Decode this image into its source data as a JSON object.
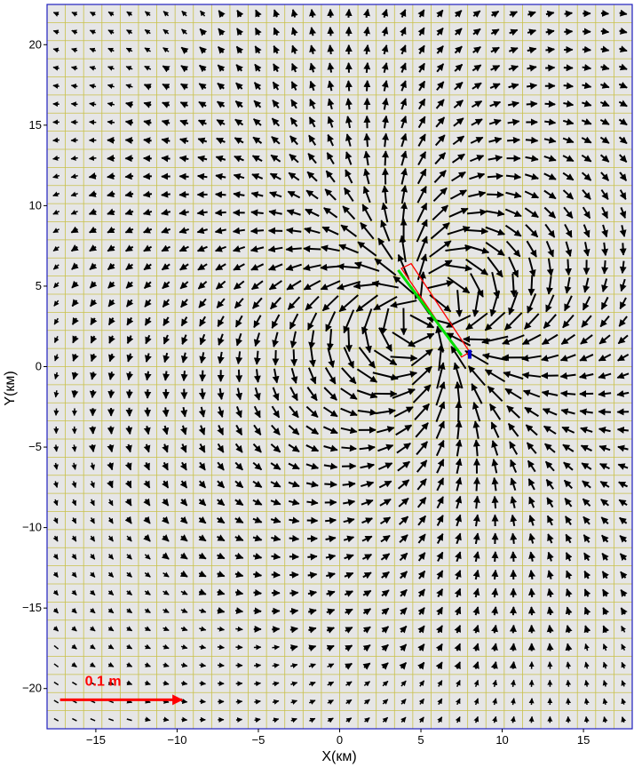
{
  "chart_data": {
    "type": "vector-field",
    "xlabel": "X(км)",
    "ylabel": "Y(км)",
    "xlim": [
      -18,
      18
    ],
    "ylim": [
      -22.5,
      22.5
    ],
    "xticks": [
      -15,
      -10,
      -5,
      0,
      5,
      10,
      15
    ],
    "yticks": [
      20,
      15,
      10,
      5,
      0,
      -5,
      -10,
      -15,
      -20
    ],
    "xtick_labels": [
      "−15",
      "−10",
      "−5",
      "0",
      "5",
      "10",
      "15"
    ],
    "ytick_labels": [
      "20",
      "15",
      "10",
      "5",
      "0",
      "−5",
      "−10",
      "−15",
      "−20"
    ],
    "grid": true,
    "grid_spacing_km": [
      1.125,
      1.125
    ],
    "grid_color": "#c8c04a",
    "background_color": "#e6e6e6",
    "frame_color": "#1f1fbf",
    "arrow_color": "#000000",
    "scale_arrow": {
      "label": "0.1 m",
      "length_km": 7.5,
      "y_km": -20.7,
      "x_start_km": -17.2,
      "color": "#ff0000"
    },
    "fault_trace": {
      "start": [
        3.6,
        6.0
      ],
      "end": [
        7.5,
        0.7
      ],
      "color": "#00dd00"
    },
    "fault_plane_outline": {
      "corners": [
        [
          3.8,
          6.1
        ],
        [
          4.4,
          6.4
        ],
        [
          8.0,
          0.9
        ],
        [
          7.5,
          0.6
        ]
      ],
      "color": "#ff0000"
    },
    "fault_marker": {
      "position": [
        8.0,
        0.6
      ],
      "color": "#0000cc"
    },
    "vector_model": {
      "center_km": [
        5.5,
        3.3
      ],
      "strike_deg": 34,
      "sector_count": 2
    }
  }
}
